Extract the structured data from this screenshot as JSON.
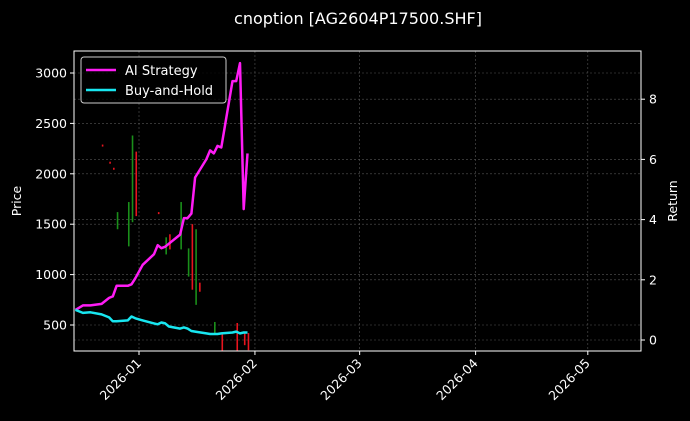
{
  "chart_data": {
    "type": "line",
    "title": "cnoption [AG2604P17500.SHF]",
    "xlabel": "",
    "ylabel": "Price",
    "y2label": "Return",
    "x_ticks": [
      "2026-01",
      "2026-02",
      "2026-03",
      "2026-04",
      "2026-05"
    ],
    "y_ticks": [
      500,
      1000,
      1500,
      2000,
      2500,
      3000
    ],
    "y2_ticks": [
      0,
      2,
      4,
      6,
      8
    ],
    "ylim": [
      240,
      3220
    ],
    "y2lim": [
      -0.3,
      9.6
    ],
    "grid": true,
    "legend_position": "upper left",
    "legend": [
      "AI Strategy",
      "Buy-and-Hold"
    ],
    "series": [
      {
        "name": "AI Strategy",
        "axis": "right",
        "color": "#ff1cf5",
        "x": [
          "2025-12-15",
          "2025-12-17",
          "2025-12-19",
          "2025-12-22",
          "2025-12-24",
          "2025-12-25",
          "2025-12-26",
          "2025-12-29",
          "2025-12-30",
          "2025-12-31",
          "2026-01-02",
          "2026-01-05",
          "2026-01-06",
          "2026-01-07",
          "2026-01-08",
          "2026-01-09",
          "2026-01-12",
          "2026-01-13",
          "2026-01-14",
          "2026-01-15",
          "2026-01-16",
          "2026-01-19",
          "2026-01-20",
          "2026-01-21",
          "2026-01-22",
          "2026-01-23",
          "2026-01-26",
          "2026-01-27",
          "2026-01-28",
          "2026-01-29",
          "2026-01-30"
        ],
        "values": [
          1.0,
          1.15,
          1.15,
          1.2,
          1.4,
          1.45,
          1.8,
          1.8,
          1.85,
          2.05,
          2.5,
          2.85,
          3.15,
          3.05,
          3.1,
          3.2,
          3.5,
          4.05,
          4.05,
          4.2,
          5.4,
          6.0,
          6.3,
          6.2,
          6.45,
          6.4,
          8.6,
          8.6,
          9.2,
          4.35,
          6.2
        ]
      },
      {
        "name": "Buy-and-Hold",
        "axis": "right",
        "color": "#18e6f0",
        "x": [
          "2025-12-15",
          "2025-12-17",
          "2025-12-19",
          "2025-12-22",
          "2025-12-24",
          "2025-12-25",
          "2025-12-26",
          "2025-12-29",
          "2025-12-30",
          "2025-12-31",
          "2026-01-02",
          "2026-01-05",
          "2026-01-06",
          "2026-01-07",
          "2026-01-08",
          "2026-01-09",
          "2026-01-12",
          "2026-01-13",
          "2026-01-14",
          "2026-01-15",
          "2026-01-16",
          "2026-01-19",
          "2026-01-20",
          "2026-01-21",
          "2026-01-22",
          "2026-01-23",
          "2026-01-26",
          "2026-01-27",
          "2026-01-28",
          "2026-01-29",
          "2026-01-30"
        ],
        "values": [
          1.0,
          0.9,
          0.92,
          0.85,
          0.75,
          0.62,
          0.62,
          0.65,
          0.78,
          0.72,
          0.65,
          0.55,
          0.52,
          0.58,
          0.55,
          0.45,
          0.38,
          0.42,
          0.38,
          0.3,
          0.28,
          0.22,
          0.2,
          0.2,
          0.2,
          0.22,
          0.25,
          0.28,
          0.22,
          0.25,
          0.25
        ]
      }
    ],
    "candles": {
      "axis": "left",
      "up_color": "#1a8f1a",
      "down_color": "#e8141e",
      "items": [
        {
          "x": "2025-12-22",
          "low": 2270,
          "high": 2290,
          "dir": "down"
        },
        {
          "x": "2025-12-24",
          "low": 2100,
          "high": 2120,
          "dir": "down"
        },
        {
          "x": "2025-12-25",
          "low": 2040,
          "high": 2060,
          "dir": "down"
        },
        {
          "x": "2025-12-26",
          "low": 1450,
          "high": 1620,
          "dir": "up"
        },
        {
          "x": "2025-12-29",
          "low": 1280,
          "high": 1720,
          "dir": "up"
        },
        {
          "x": "2025-12-30",
          "low": 1520,
          "high": 2380,
          "dir": "up"
        },
        {
          "x": "2025-12-31",
          "low": 1580,
          "high": 2220,
          "dir": "down"
        },
        {
          "x": "2026-01-06",
          "low": 1600,
          "high": 1620,
          "dir": "down"
        },
        {
          "x": "2026-01-08",
          "low": 1200,
          "high": 1370,
          "dir": "up"
        },
        {
          "x": "2026-01-09",
          "low": 1250,
          "high": 1400,
          "dir": "down"
        },
        {
          "x": "2026-01-12",
          "low": 1250,
          "high": 1720,
          "dir": "up"
        },
        {
          "x": "2026-01-14",
          "low": 980,
          "high": 1260,
          "dir": "up"
        },
        {
          "x": "2026-01-15",
          "low": 850,
          "high": 1500,
          "dir": "down"
        },
        {
          "x": "2026-01-16",
          "low": 700,
          "high": 1450,
          "dir": "up"
        },
        {
          "x": "2026-01-17",
          "low": 830,
          "high": 920,
          "dir": "down"
        },
        {
          "x": "2026-01-21",
          "low": 420,
          "high": 530,
          "dir": "up"
        },
        {
          "x": "2026-01-23",
          "low": 230,
          "high": 410,
          "dir": "down"
        },
        {
          "x": "2026-01-27",
          "low": 230,
          "high": 520,
          "dir": "down"
        },
        {
          "x": "2026-01-29",
          "low": 300,
          "high": 420,
          "dir": "down"
        },
        {
          "x": "2026-01-30",
          "low": 250,
          "high": 420,
          "dir": "down"
        }
      ]
    }
  }
}
